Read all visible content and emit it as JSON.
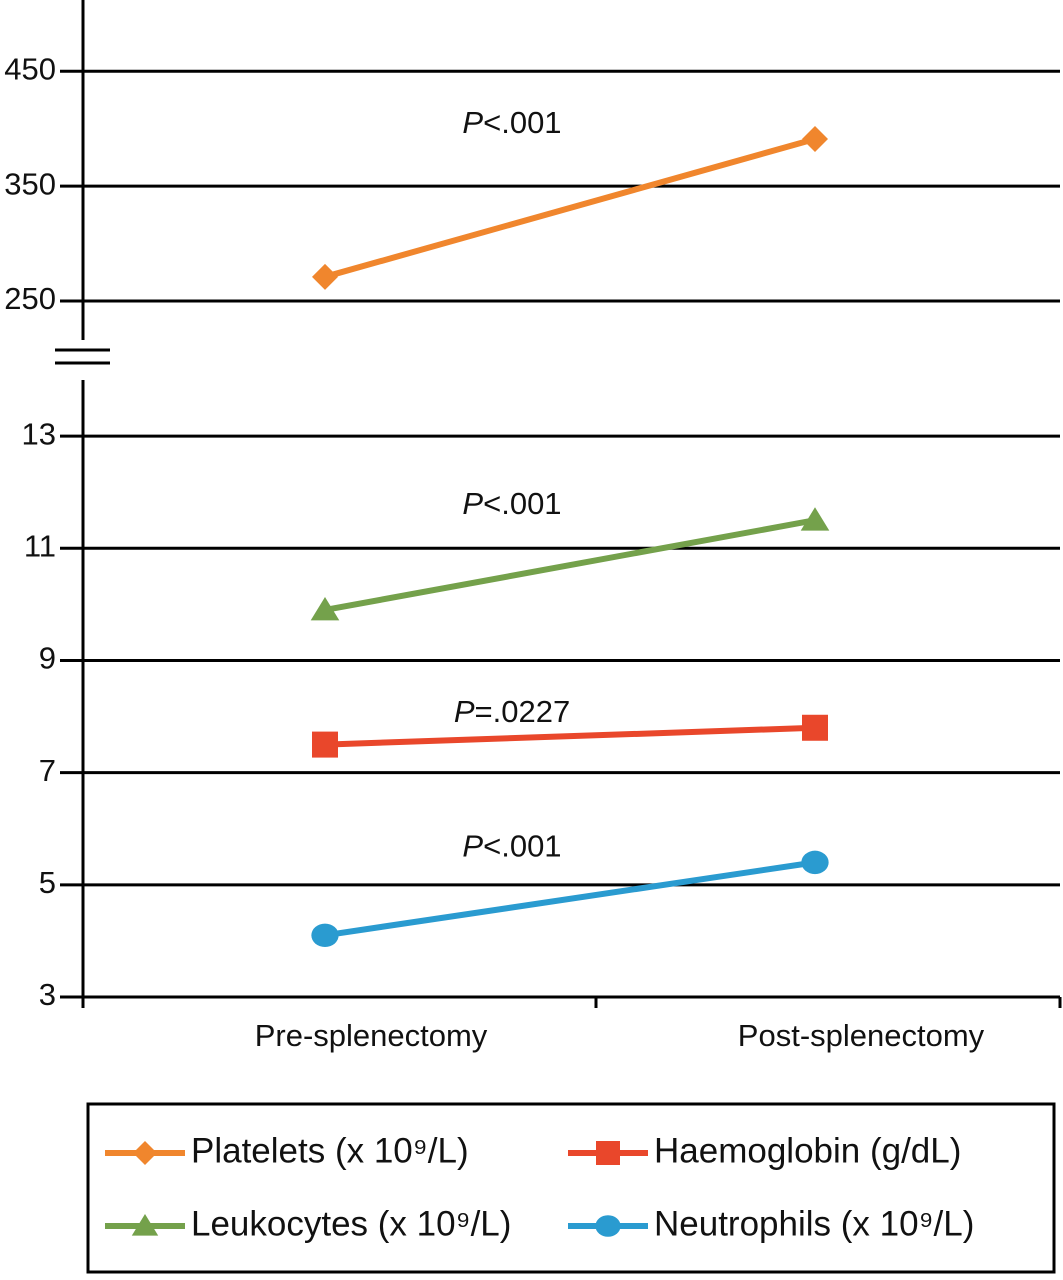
{
  "chart_data": {
    "type": "line",
    "categories": [
      "Pre-splenectomy",
      "Post-splenectomy"
    ],
    "broken_axis": true,
    "ylim": [
      3,
      14
    ],
    "yticks": [
      3,
      5,
      7,
      9,
      11,
      13
    ],
    "y2lim": [
      216,
      512
    ],
    "y2ticks": [
      250,
      350,
      450
    ],
    "grid": true,
    "legend": "bottom",
    "series": [
      {
        "name": "Platelets (x 10⁹/L)",
        "color": "#f0862d",
        "marker": "diamond",
        "axis": "y2",
        "values": [
          271,
          391
        ],
        "annotation": {
          "italic": "P",
          "text": "<.001"
        }
      },
      {
        "name": "Haemoglobin (g/dL)",
        "color": "#e9472b",
        "marker": "square",
        "values": [
          7.5,
          7.8
        ],
        "annotation": {
          "italic": "P",
          "text": "=.0227"
        }
      },
      {
        "name": "Leukocytes (x 10⁹/L)",
        "color": "#74a14b",
        "marker": "triangle",
        "values": [
          9.9,
          11.5
        ],
        "annotation": {
          "italic": "P",
          "text": "<.001"
        }
      },
      {
        "name": "Neutrophils (x 10⁹/L)",
        "color": "#2a9bd0",
        "marker": "circle",
        "values": [
          4.1,
          5.4
        ],
        "annotation": {
          "italic": "P",
          "text": "<.001"
        }
      }
    ]
  }
}
